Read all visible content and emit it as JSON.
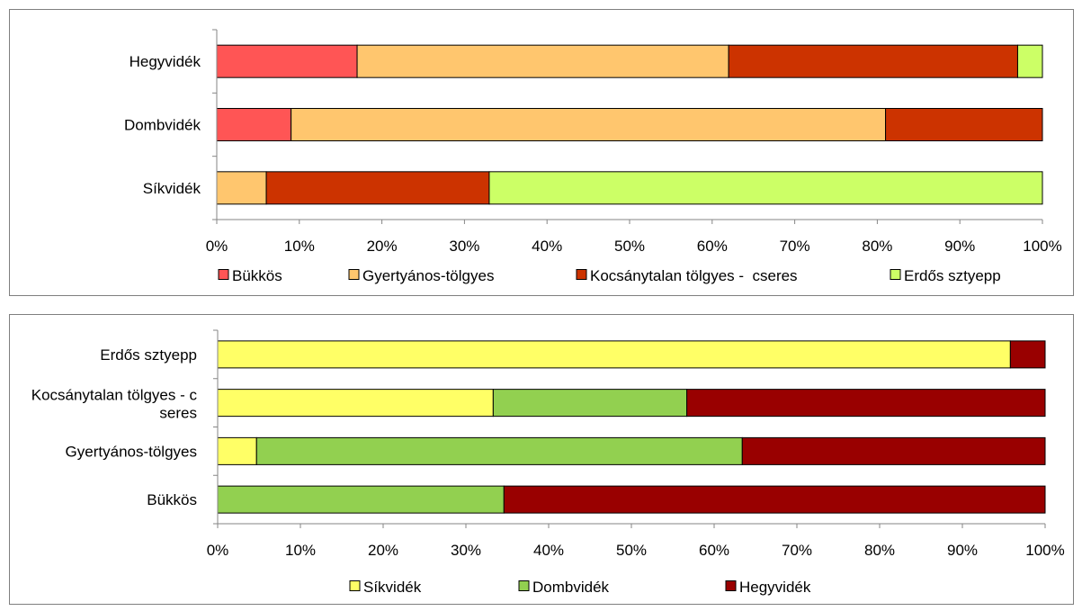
{
  "chart_data": [
    {
      "type": "bar",
      "orientation": "horizontal",
      "stacked": "percent",
      "categories": [
        "Hegyvidék",
        "Dombvidék",
        "Síkvidék"
      ],
      "series": [
        {
          "name": "Bükkös",
          "color": "#ff5555",
          "values": [
            17,
            9,
            0
          ]
        },
        {
          "name": "Gyertyános-tölgyes",
          "color": "#ffc66e",
          "values": [
            45,
            72,
            6
          ]
        },
        {
          "name": "Kocsánytalan tölgyes -  cseres",
          "color": "#cc3300",
          "values": [
            35,
            19,
            27
          ]
        },
        {
          "name": "Erdős sztyepp",
          "color": "#ccff66",
          "values": [
            3,
            0,
            67
          ]
        }
      ],
      "x_ticks": [
        "0%",
        "10%",
        "20%",
        "30%",
        "40%",
        "50%",
        "60%",
        "70%",
        "80%",
        "90%",
        "100%"
      ],
      "xlim": [
        0,
        100
      ],
      "grid": false,
      "legend": "bottom"
    },
    {
      "type": "bar",
      "orientation": "horizontal",
      "stacked": "percent",
      "categories": [
        "Erdős sztyepp",
        "Kocsánytalan tölgyes - cseres",
        "Gyertyános-tölgyes",
        "Bükkös"
      ],
      "series": [
        {
          "name": "Síkvidék",
          "color": "#ffff66",
          "values": [
            95.8,
            33.3,
            4.7,
            0
          ]
        },
        {
          "name": "Dombvidék",
          "color": "#92d050",
          "values": [
            0,
            23.4,
            58.7,
            34.6
          ]
        },
        {
          "name": "Hegyvidék",
          "color": "#990000",
          "values": [
            4.2,
            43.3,
            36.6,
            65.4
          ]
        }
      ],
      "x_ticks": [
        "0%",
        "10%",
        "20%",
        "30%",
        "40%",
        "50%",
        "60%",
        "70%",
        "80%",
        "90%",
        "100%"
      ],
      "xlim": [
        0,
        100
      ],
      "grid": false,
      "legend": "bottom"
    }
  ]
}
